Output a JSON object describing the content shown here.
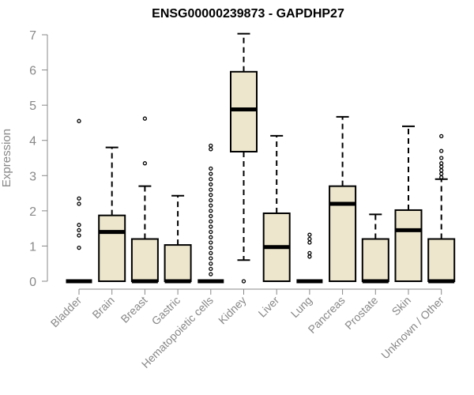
{
  "chart_data": {
    "type": "boxplot",
    "title": "ENSG00000239873 - GAPDHP27",
    "ylabel": "Expression",
    "xlabel": "",
    "ylim": [
      0,
      7
    ],
    "yticks": [
      "0",
      "1",
      "2",
      "3",
      "4",
      "5",
      "6",
      "7"
    ],
    "grid": false,
    "colors": {
      "box_fill": "#ede6cc",
      "stroke": "#000000",
      "axis_text": "#888888"
    },
    "categories": [
      "Bladder",
      "Brain",
      "Breast",
      "Gastric",
      "Hematopoietic cells",
      "Kidney",
      "Liver",
      "Lung",
      "Pancreas",
      "Prostate",
      "Skin",
      "Unknown / Other"
    ],
    "boxes": [
      {
        "category": "Bladder",
        "min": 0,
        "q1": 0,
        "median": 0,
        "q3": 0,
        "max": 0,
        "outliers": [
          0.95,
          1.3,
          1.45,
          1.6,
          2.2,
          2.35,
          4.55
        ]
      },
      {
        "category": "Brain",
        "min": 0,
        "q1": 0,
        "median": 1.4,
        "q3": 1.87,
        "max": 3.8,
        "outliers": []
      },
      {
        "category": "Breast",
        "min": 0,
        "q1": 0,
        "median": 0,
        "q3": 1.2,
        "max": 2.7,
        "outliers": [
          3.35,
          4.62
        ]
      },
      {
        "category": "Gastric",
        "min": 0,
        "q1": 0,
        "median": 0,
        "q3": 1.03,
        "max": 2.43,
        "outliers": []
      },
      {
        "category": "Hematopoietic cells",
        "min": 0,
        "q1": 0,
        "median": 0,
        "q3": 0,
        "max": 0,
        "outliers": [
          0.2,
          0.35,
          0.5,
          0.65,
          0.8,
          0.95,
          1.1,
          1.25,
          1.4,
          1.55,
          1.7,
          1.85,
          2.0,
          2.15,
          2.3,
          2.45,
          2.6,
          2.75,
          2.9,
          3.05,
          3.2,
          3.75,
          3.85
        ]
      },
      {
        "category": "Kidney",
        "min": 0.6,
        "q1": 3.68,
        "median": 4.88,
        "q3": 5.95,
        "max": 7.03,
        "outliers": [
          0
        ]
      },
      {
        "category": "Liver",
        "min": 0,
        "q1": 0,
        "median": 0.97,
        "q3": 1.93,
        "max": 4.13,
        "outliers": []
      },
      {
        "category": "Lung",
        "min": 0,
        "q1": 0,
        "median": 0,
        "q3": 0,
        "max": 0,
        "outliers": [
          0.7,
          0.8,
          1.1,
          1.2,
          1.32
        ]
      },
      {
        "category": "Pancreas",
        "min": 0,
        "q1": 0,
        "median": 2.2,
        "q3": 2.7,
        "max": 4.67,
        "outliers": []
      },
      {
        "category": "Prostate",
        "min": 0,
        "q1": 0,
        "median": 0,
        "q3": 1.2,
        "max": 1.9,
        "outliers": []
      },
      {
        "category": "Skin",
        "min": 0,
        "q1": 0,
        "median": 1.45,
        "q3": 2.02,
        "max": 4.4,
        "outliers": []
      },
      {
        "category": "Unknown / Other",
        "min": 0,
        "q1": 0,
        "median": 0,
        "q3": 1.2,
        "max": 2.9,
        "outliers": [
          2.95,
          3.05,
          3.15,
          3.25,
          3.35,
          3.5,
          3.7,
          4.12
        ]
      }
    ]
  }
}
